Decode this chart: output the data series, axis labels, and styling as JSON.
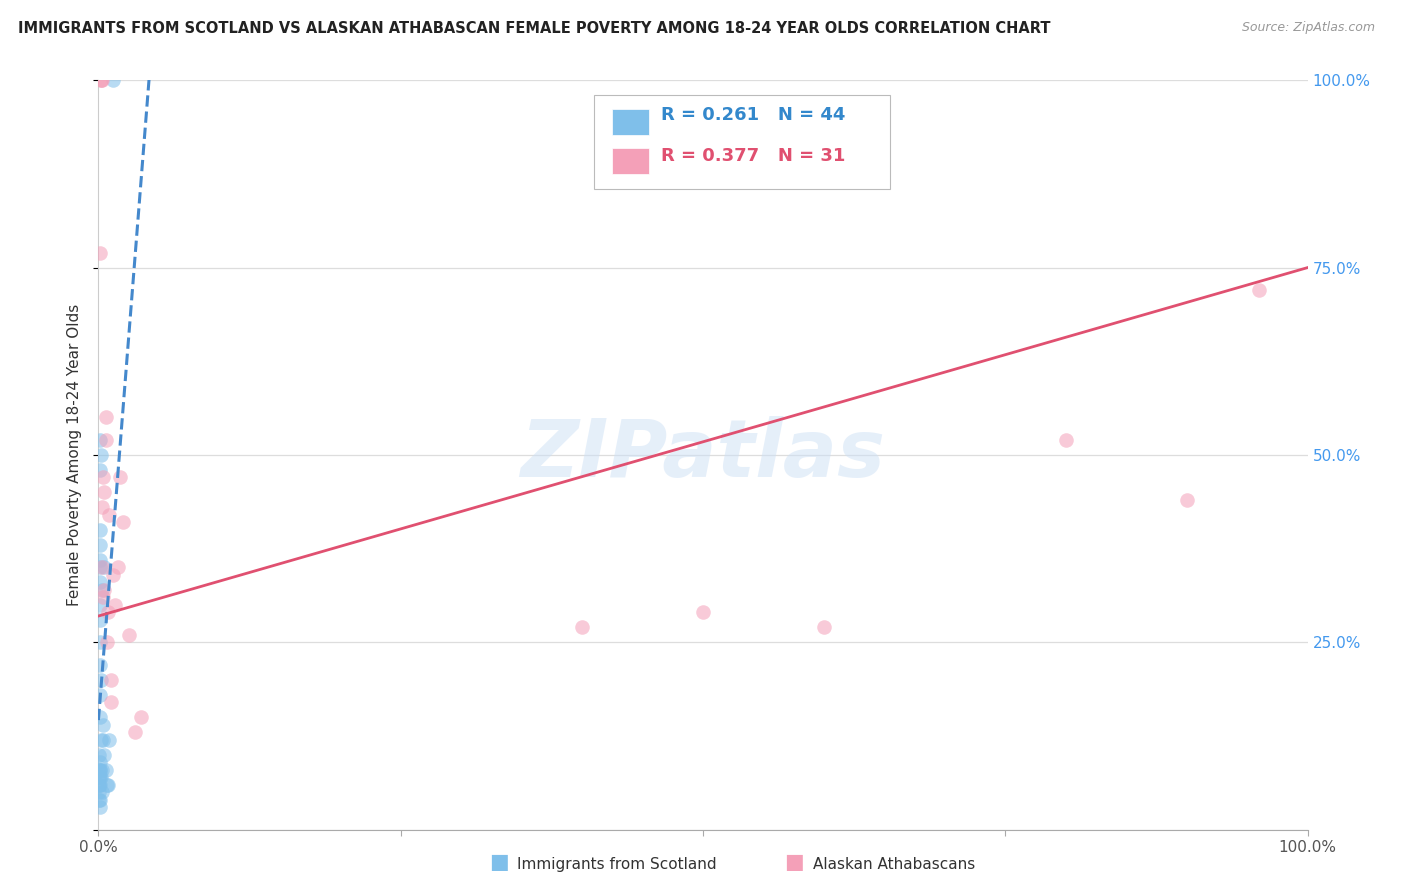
{
  "title": "IMMIGRANTS FROM SCOTLAND VS ALASKAN ATHABASCAN FEMALE POVERTY AMONG 18-24 YEAR OLDS CORRELATION CHART",
  "source": "Source: ZipAtlas.com",
  "ylabel": "Female Poverty Among 18-24 Year Olds",
  "r_blue": 0.261,
  "n_blue": 44,
  "r_pink": 0.377,
  "n_pink": 31,
  "blue_color": "#7fbfea",
  "pink_color": "#f4a0b8",
  "blue_line_color": "#4488cc",
  "pink_line_color": "#e05070",
  "watermark_text": "ZIPatlas",
  "blue_scatter_x": [
    0.0003,
    0.0004,
    0.0005,
    0.0005,
    0.0006,
    0.0007,
    0.0008,
    0.0008,
    0.0009,
    0.001,
    0.001,
    0.001,
    0.001,
    0.001,
    0.001,
    0.001,
    0.001,
    0.001,
    0.001,
    0.001,
    0.001,
    0.001,
    0.001,
    0.0012,
    0.0013,
    0.0014,
    0.0015,
    0.0015,
    0.002,
    0.002,
    0.002,
    0.0025,
    0.003,
    0.003,
    0.003,
    0.004,
    0.004,
    0.005,
    0.005,
    0.006,
    0.007,
    0.008,
    0.009,
    0.012
  ],
  "blue_scatter_y": [
    0.07,
    0.05,
    0.06,
    0.04,
    0.08,
    0.06,
    0.1,
    0.07,
    0.09,
    0.08,
    0.15,
    0.18,
    0.22,
    0.25,
    0.28,
    0.3,
    0.33,
    0.35,
    0.36,
    0.38,
    0.4,
    0.48,
    0.52,
    0.06,
    0.07,
    0.08,
    0.03,
    0.04,
    0.12,
    0.2,
    0.5,
    0.07,
    0.05,
    0.08,
    0.32,
    0.12,
    0.14,
    0.1,
    0.35,
    0.08,
    0.06,
    0.06,
    0.12,
    1.0
  ],
  "pink_scatter_x": [
    0.001,
    0.002,
    0.002,
    0.003,
    0.003,
    0.003,
    0.004,
    0.004,
    0.005,
    0.005,
    0.006,
    0.006,
    0.007,
    0.008,
    0.009,
    0.01,
    0.01,
    0.012,
    0.014,
    0.016,
    0.018,
    0.02,
    0.025,
    0.03,
    0.035,
    0.4,
    0.5,
    0.6,
    0.8,
    0.9,
    0.96
  ],
  "pink_scatter_y": [
    0.77,
    1.0,
    1.0,
    1.0,
    0.43,
    0.35,
    0.31,
    0.47,
    0.32,
    0.45,
    0.55,
    0.52,
    0.25,
    0.29,
    0.42,
    0.17,
    0.2,
    0.34,
    0.3,
    0.35,
    0.47,
    0.41,
    0.26,
    0.13,
    0.15,
    0.27,
    0.29,
    0.27,
    0.52,
    0.44,
    0.72
  ],
  "blue_line_start_x": 0.0,
  "blue_line_end_x": 0.1,
  "pink_line_start_x": 0.0,
  "pink_line_end_x": 1.0,
  "pink_line_start_y": 0.285,
  "pink_line_end_y": 0.75,
  "xlim": [
    0.0,
    1.0
  ],
  "ylim": [
    0.0,
    1.0
  ],
  "ytick_positions": [
    0.0,
    0.25,
    0.5,
    0.75,
    1.0
  ],
  "ytick_labels_right": [
    "",
    "25.0%",
    "50.0%",
    "75.0%",
    "100.0%"
  ],
  "xtick_positions": [
    0.0,
    0.25,
    0.5,
    0.75,
    1.0
  ],
  "xtick_labels": [
    "0.0%",
    "",
    "",
    "",
    "100.0%"
  ],
  "grid_color": "#dddddd",
  "background_color": "#ffffff",
  "right_tick_color": "#4499ee",
  "bottom_tick_color": "#555555"
}
